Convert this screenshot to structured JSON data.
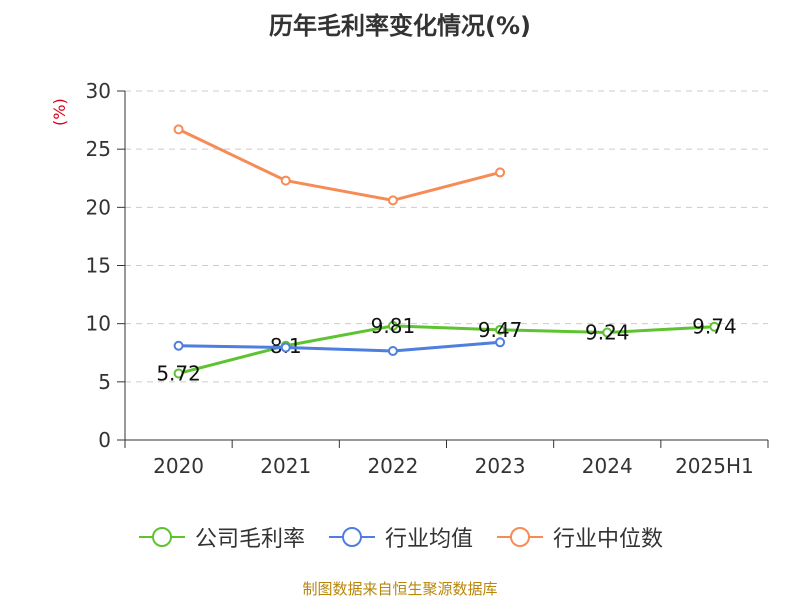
{
  "title": "历年毛利率变化情况(%)",
  "source": "制图数据来自恒生聚源数据库",
  "chart_data": {
    "type": "line",
    "title": "历年毛利率变化情况(%)",
    "ylabel": "(%)",
    "xlabel": "",
    "categories": [
      "2020",
      "2021",
      "2022",
      "2023",
      "2024",
      "2025H1"
    ],
    "ylim": [
      0,
      30
    ],
    "yticks": [
      0,
      5,
      10,
      15,
      20,
      25,
      30
    ],
    "grid": true,
    "legend_position": "bottom",
    "series": [
      {
        "name": "公司毛利率",
        "color": "#5ec330",
        "values": [
          5.72,
          8.1,
          9.81,
          9.47,
          9.24,
          9.74
        ],
        "labels": [
          "5.72",
          "8.1",
          "9.81",
          "9.47",
          "9.24",
          "9.74"
        ]
      },
      {
        "name": "行业均值",
        "color": "#4e7ee0",
        "values": [
          8.1,
          7.95,
          7.65,
          8.4,
          null,
          null
        ]
      },
      {
        "name": "行业中位数",
        "color": "#f68b56",
        "values": [
          26.7,
          22.3,
          20.6,
          23.0,
          null,
          null
        ]
      }
    ]
  }
}
